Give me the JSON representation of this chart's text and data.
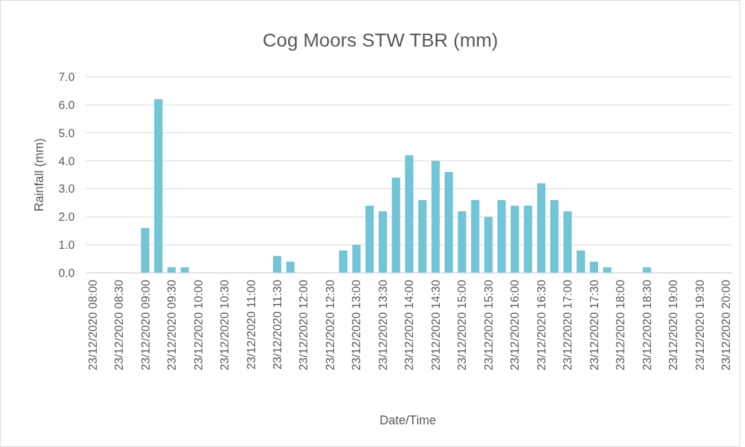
{
  "chart_data": {
    "type": "bar",
    "title": "Cog Moors STW TBR (mm)",
    "xlabel": "Date/Time",
    "ylabel": "Rainfall (mm)",
    "categories": [
      "23/12/2020 08:00",
      null,
      "23/12/2020 08:30",
      null,
      "23/12/2020 09:00",
      null,
      "23/12/2020 09:30",
      null,
      "23/12/2020 10:00",
      null,
      "23/12/2020 10:30",
      null,
      "23/12/2020 11:00",
      null,
      "23/12/2020 11:30",
      null,
      "23/12/2020 12:00",
      null,
      "23/12/2020 12:30",
      null,
      "23/12/2020 13:00",
      null,
      "23/12/2020 13:30",
      null,
      "23/12/2020 14:00",
      null,
      "23/12/2020 14:30",
      null,
      "23/12/2020 15:00",
      null,
      "23/12/2020 15:30",
      null,
      "23/12/2020 16:00",
      null,
      "23/12/2020 16:30",
      null,
      "23/12/2020 17:00",
      null,
      "23/12/2020 17:30",
      null,
      "23/12/2020 18:00",
      null,
      "23/12/2020 18:30",
      null,
      "23/12/2020 19:00",
      null,
      "23/12/2020 19:30",
      null,
      "23/12/2020 20:00"
    ],
    "values": [
      0,
      0,
      0,
      0,
      1.6,
      6.2,
      0.2,
      0.2,
      0,
      0,
      0,
      0,
      0,
      0,
      0.6,
      0.4,
      0,
      0,
      0,
      0.8,
      1.0,
      2.4,
      2.2,
      3.4,
      4.2,
      2.6,
      4.0,
      3.6,
      2.2,
      2.6,
      2.0,
      2.6,
      2.4,
      2.4,
      3.2,
      2.6,
      2.2,
      0.8,
      0.4,
      0.2,
      0,
      0,
      0.2,
      0,
      0,
      0,
      0,
      0,
      0
    ],
    "color": "#72c4d7",
    "ylim": [
      0,
      7
    ],
    "yticks": [
      {
        "value": 0,
        "label": "0.0"
      },
      {
        "value": 1,
        "label": "1.0"
      },
      {
        "value": 2,
        "label": "2.0"
      },
      {
        "value": 3,
        "label": "3.0"
      },
      {
        "value": 4,
        "label": "4.0"
      },
      {
        "value": 5,
        "label": "5.0"
      },
      {
        "value": 6,
        "label": "6.0"
      },
      {
        "value": 7,
        "label": "7.0"
      }
    ],
    "grid": "y"
  }
}
